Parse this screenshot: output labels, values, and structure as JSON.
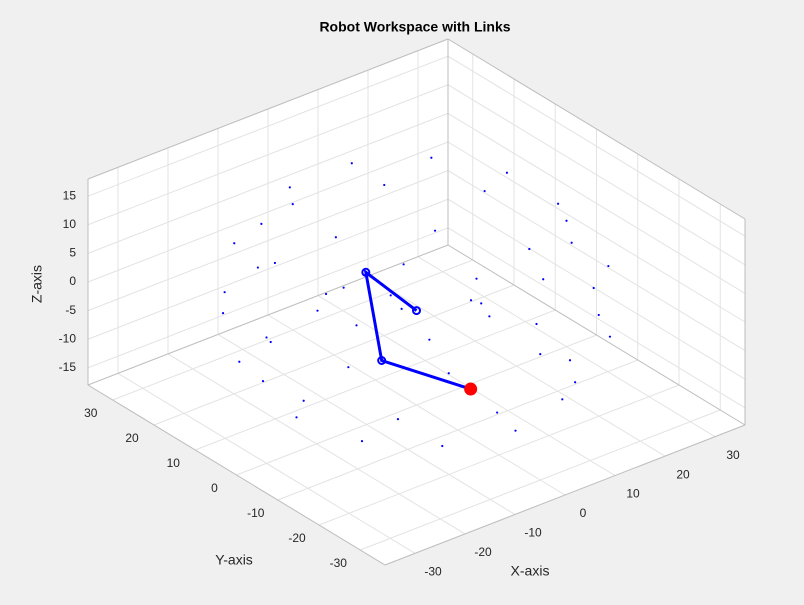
{
  "chart_data": {
    "type": "scatter3d",
    "title": "Robot Workspace with Links",
    "xlabel": "X-axis",
    "ylabel": "Y-axis",
    "zlabel": "Z-axis",
    "xlim": [
      -36,
      36
    ],
    "ylim": [
      -36,
      36
    ],
    "zlim": [
      -18,
      18
    ],
    "xticks": [
      -30,
      -20,
      -10,
      0,
      10,
      20,
      30
    ],
    "yticks": [
      -30,
      -20,
      -10,
      0,
      10,
      20,
      30
    ],
    "zticks": [
      -15,
      -10,
      -5,
      0,
      5,
      10,
      15
    ],
    "grid": true,
    "workspace": {
      "color": "#0000ff",
      "x": [
        24,
        20.8,
        12,
        0,
        -12,
        -20.8,
        -24,
        -20.8,
        -12,
        0,
        12,
        20.8,
        29,
        21.2,
        7.8,
        -7.8,
        -21.2,
        -29,
        -29,
        -21.2,
        -7.8,
        7.8,
        21.2,
        29,
        30,
        26,
        15,
        0,
        -15,
        -26,
        -30,
        -26,
        -15,
        0,
        15,
        26,
        23.2,
        17,
        6.2,
        -6.2,
        -17,
        -23.2,
        -23.2,
        -17,
        -6.2,
        6.2,
        17,
        23.2,
        12,
        6,
        -6,
        -12,
        -6,
        6
      ],
      "y": [
        0,
        12,
        20.8,
        24,
        20.8,
        12,
        0,
        -12,
        -20.8,
        -24,
        -20.8,
        -12,
        7.8,
        21.2,
        29,
        29,
        21.2,
        7.8,
        -7.8,
        -21.2,
        -29,
        -29,
        -21.2,
        -7.8,
        0,
        15,
        26,
        30,
        26,
        15,
        0,
        -15,
        -26,
        -30,
        -26,
        -15,
        6.2,
        17,
        23.2,
        23.2,
        17,
        6.2,
        -6.2,
        -17,
        -23.2,
        -23.2,
        -17,
        -6.2,
        0,
        10.4,
        10.4,
        0,
        -10.4,
        -10.4
      ],
      "z": [
        -12,
        -12,
        -12,
        -12,
        -12,
        -12,
        -12,
        -12,
        -12,
        -12,
        -12,
        -12,
        -4,
        -4,
        -4,
        -4,
        -4,
        -4,
        -4,
        -4,
        -4,
        -4,
        -4,
        -4,
        4,
        4,
        4,
        4,
        4,
        4,
        4,
        4,
        4,
        4,
        4,
        4,
        12,
        12,
        12,
        12,
        12,
        12,
        12,
        12,
        12,
        12,
        12,
        12,
        0,
        0,
        0,
        0,
        0,
        0
      ]
    },
    "links": {
      "color": "#0000ff",
      "end_color": "#ff0000",
      "x": [
        0,
        -11.7,
        -6.8,
        0.6
      ],
      "y": [
        0,
        -1.9,
        0.2,
        -12.4
      ],
      "z": [
        -1.5,
        10,
        -8,
        -10
      ]
    }
  }
}
